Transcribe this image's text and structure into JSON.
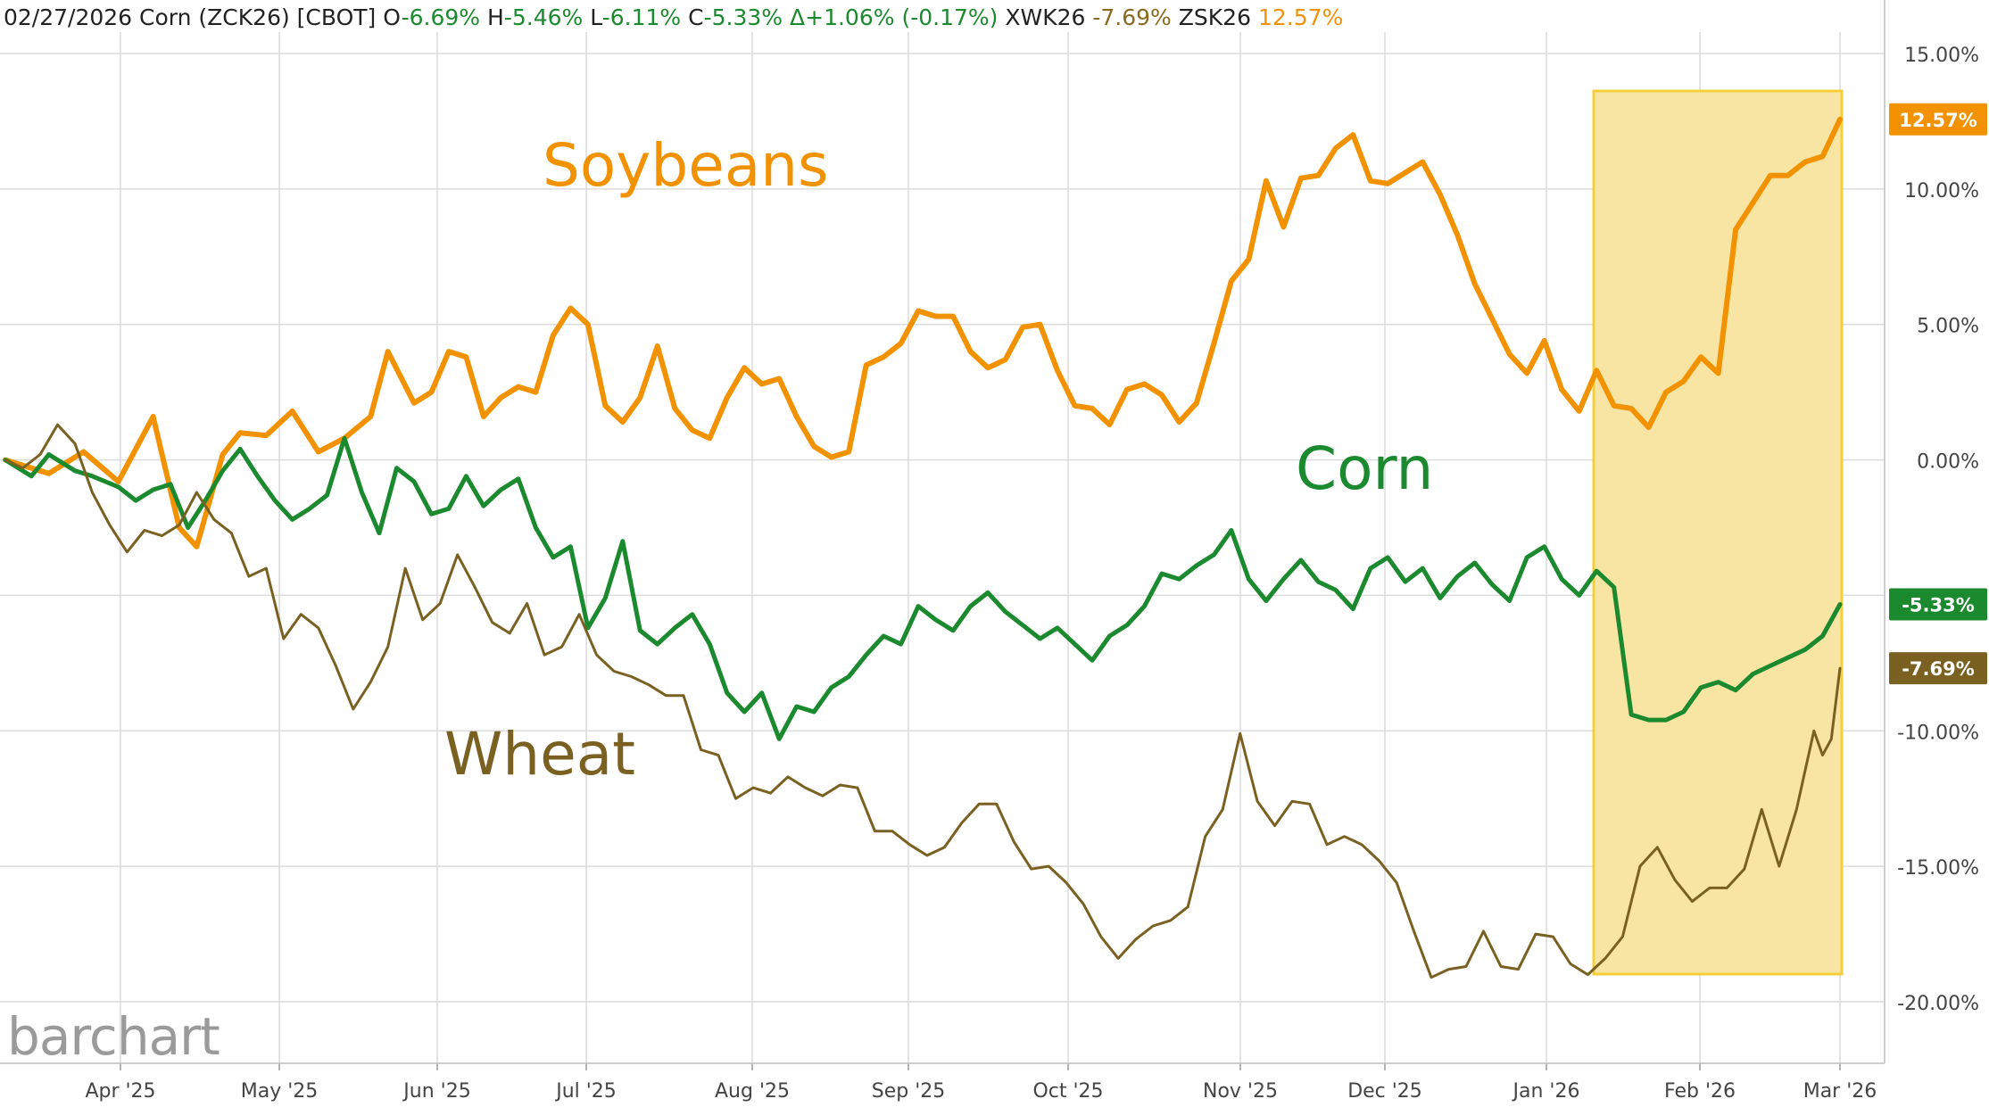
{
  "header": {
    "date": "02/27/2026",
    "symbol_text": "Corn (ZCK26) [CBOT]",
    "open_label": "O",
    "open": "-6.69%",
    "high_label": "H",
    "high": "-5.46%",
    "low_label": "L",
    "low": "-6.11%",
    "close_label": "C",
    "close": "-5.33%",
    "change": "Δ+1.06% (-0.17%)",
    "wheat_symbol": "XWK26",
    "wheat_value": "-7.69%",
    "soy_symbol": "ZSK26",
    "soy_value": "12.57%"
  },
  "logo_text": "barchart",
  "colors": {
    "corn": "#1b8a2e",
    "wheat": "#7a6121",
    "soybeans": "#f39200",
    "highlight_fill": "#f9e5a3",
    "highlight_stroke": "#f5cf37",
    "grid": "#dcdcdc",
    "axis_text": "#444444"
  },
  "chart_data": {
    "type": "line",
    "x_axis_labels": [
      "Apr '25",
      "May '25",
      "Jun '25",
      "Jul '25",
      "Aug '25",
      "Sep '25",
      "Oct '25",
      "Nov '25",
      "Dec '25",
      "Jan '26",
      "Feb '26",
      "Mar '26"
    ],
    "y_ticks": [
      "15.00%",
      "10.00%",
      "5.00%",
      "0.00%",
      "-5.00%",
      "-10.00%",
      "-15.00%",
      "-20.00%"
    ],
    "ylim": [
      -20,
      15
    ],
    "annotations": {
      "soybeans": "Soybeans",
      "corn": "Corn",
      "wheat": "Wheat"
    },
    "highlight_range": [
      "Jan '26",
      "Mar '26"
    ],
    "series": [
      {
        "name": "Soybeans",
        "key": "soybeans",
        "last_label": "12.57%",
        "points": [
          [
            0,
            0.0
          ],
          [
            5,
            -0.5
          ],
          [
            9,
            0.3
          ],
          [
            13,
            -0.8
          ],
          [
            17,
            1.6
          ],
          [
            20,
            -2.5
          ],
          [
            22,
            -3.2
          ],
          [
            25,
            0.2
          ],
          [
            27,
            1.0
          ],
          [
            30,
            0.9
          ],
          [
            33,
            1.8
          ],
          [
            36,
            0.3
          ],
          [
            39,
            0.8
          ],
          [
            42,
            1.6
          ],
          [
            44,
            4.0
          ],
          [
            47,
            2.1
          ],
          [
            49,
            2.5
          ],
          [
            51,
            4.0
          ],
          [
            53,
            3.8
          ],
          [
            55,
            1.6
          ],
          [
            57,
            2.3
          ],
          [
            59,
            2.7
          ],
          [
            61,
            2.5
          ],
          [
            63,
            4.6
          ],
          [
            65,
            5.6
          ],
          [
            67,
            5.0
          ],
          [
            69,
            2.0
          ],
          [
            71,
            1.4
          ],
          [
            73,
            2.3
          ],
          [
            75,
            4.2
          ],
          [
            77,
            1.9
          ],
          [
            79,
            1.1
          ],
          [
            81,
            0.8
          ],
          [
            83,
            2.3
          ],
          [
            85,
            3.4
          ],
          [
            87,
            2.8
          ],
          [
            89,
            3.0
          ],
          [
            91,
            1.6
          ],
          [
            93,
            0.5
          ],
          [
            95,
            0.1
          ],
          [
            97,
            0.3
          ],
          [
            99,
            3.5
          ],
          [
            101,
            3.8
          ],
          [
            103,
            4.3
          ],
          [
            105,
            5.5
          ],
          [
            107,
            5.3
          ],
          [
            109,
            5.3
          ],
          [
            111,
            4.0
          ],
          [
            113,
            3.4
          ],
          [
            115,
            3.7
          ],
          [
            117,
            4.9
          ],
          [
            119,
            5.0
          ],
          [
            121,
            3.3
          ],
          [
            123,
            2.0
          ],
          [
            125,
            1.9
          ],
          [
            127,
            1.3
          ],
          [
            129,
            2.6
          ],
          [
            131,
            2.8
          ],
          [
            133,
            2.4
          ],
          [
            135,
            1.4
          ],
          [
            137,
            2.1
          ],
          [
            139,
            4.3
          ],
          [
            141,
            6.6
          ],
          [
            143,
            7.4
          ],
          [
            145,
            10.3
          ],
          [
            147,
            8.6
          ],
          [
            149,
            10.4
          ],
          [
            151,
            10.5
          ],
          [
            153,
            11.5
          ],
          [
            155,
            12.0
          ],
          [
            157,
            10.3
          ],
          [
            159,
            10.2
          ],
          [
            161,
            10.6
          ],
          [
            163,
            11.0
          ],
          [
            165,
            9.8
          ],
          [
            167,
            8.3
          ],
          [
            169,
            6.5
          ],
          [
            171,
            5.2
          ],
          [
            173,
            3.9
          ],
          [
            175,
            3.2
          ],
          [
            177,
            4.4
          ],
          [
            179,
            2.6
          ],
          [
            181,
            1.8
          ],
          [
            183,
            3.3
          ],
          [
            185,
            2.0
          ],
          [
            187,
            1.9
          ],
          [
            189,
            1.2
          ],
          [
            191,
            2.5
          ],
          [
            193,
            2.9
          ],
          [
            195,
            3.8
          ],
          [
            197,
            3.2
          ],
          [
            199,
            8.5
          ],
          [
            201,
            9.5
          ],
          [
            203,
            10.5
          ],
          [
            205,
            10.5
          ],
          [
            207,
            11.0
          ],
          [
            209,
            11.2
          ],
          [
            211,
            12.57
          ]
        ]
      },
      {
        "name": "Corn",
        "key": "corn",
        "last_label": "-5.33%",
        "points": [
          [
            0,
            0.0
          ],
          [
            3,
            -0.6
          ],
          [
            5,
            0.2
          ],
          [
            8,
            -0.4
          ],
          [
            10,
            -0.6
          ],
          [
            13,
            -1.0
          ],
          [
            15,
            -1.5
          ],
          [
            17,
            -1.1
          ],
          [
            19,
            -0.9
          ],
          [
            21,
            -2.5
          ],
          [
            23,
            -1.5
          ],
          [
            25,
            -0.4
          ],
          [
            27,
            0.4
          ],
          [
            29,
            -0.6
          ],
          [
            31,
            -1.5
          ],
          [
            33,
            -2.2
          ],
          [
            35,
            -1.8
          ],
          [
            37,
            -1.3
          ],
          [
            39,
            0.8
          ],
          [
            41,
            -1.2
          ],
          [
            43,
            -2.7
          ],
          [
            45,
            -0.3
          ],
          [
            47,
            -0.8
          ],
          [
            49,
            -2.0
          ],
          [
            51,
            -1.8
          ],
          [
            53,
            -0.6
          ],
          [
            55,
            -1.7
          ],
          [
            57,
            -1.1
          ],
          [
            59,
            -0.7
          ],
          [
            61,
            -2.5
          ],
          [
            63,
            -3.6
          ],
          [
            65,
            -3.2
          ],
          [
            67,
            -6.2
          ],
          [
            69,
            -5.1
          ],
          [
            71,
            -3.0
          ],
          [
            73,
            -6.3
          ],
          [
            75,
            -6.8
          ],
          [
            77,
            -6.2
          ],
          [
            79,
            -5.7
          ],
          [
            81,
            -6.8
          ],
          [
            83,
            -8.6
          ],
          [
            85,
            -9.3
          ],
          [
            87,
            -8.6
          ],
          [
            89,
            -10.3
          ],
          [
            91,
            -9.1
          ],
          [
            93,
            -9.3
          ],
          [
            95,
            -8.4
          ],
          [
            97,
            -8.0
          ],
          [
            99,
            -7.2
          ],
          [
            101,
            -6.5
          ],
          [
            103,
            -6.8
          ],
          [
            105,
            -5.4
          ],
          [
            107,
            -5.9
          ],
          [
            109,
            -6.3
          ],
          [
            111,
            -5.4
          ],
          [
            113,
            -4.9
          ],
          [
            115,
            -5.6
          ],
          [
            117,
            -6.1
          ],
          [
            119,
            -6.6
          ],
          [
            121,
            -6.2
          ],
          [
            123,
            -6.8
          ],
          [
            125,
            -7.4
          ],
          [
            127,
            -6.5
          ],
          [
            129,
            -6.1
          ],
          [
            131,
            -5.4
          ],
          [
            133,
            -4.2
          ],
          [
            135,
            -4.4
          ],
          [
            137,
            -3.9
          ],
          [
            139,
            -3.5
          ],
          [
            141,
            -2.6
          ],
          [
            143,
            -4.4
          ],
          [
            145,
            -5.2
          ],
          [
            147,
            -4.4
          ],
          [
            149,
            -3.7
          ],
          [
            151,
            -4.5
          ],
          [
            153,
            -4.8
          ],
          [
            155,
            -5.5
          ],
          [
            157,
            -4.0
          ],
          [
            159,
            -3.6
          ],
          [
            161,
            -4.5
          ],
          [
            163,
            -4.0
          ],
          [
            165,
            -5.1
          ],
          [
            167,
            -4.3
          ],
          [
            169,
            -3.8
          ],
          [
            171,
            -4.6
          ],
          [
            173,
            -5.2
          ],
          [
            175,
            -3.6
          ],
          [
            177,
            -3.2
          ],
          [
            179,
            -4.4
          ],
          [
            181,
            -5.0
          ],
          [
            183,
            -4.1
          ],
          [
            185,
            -4.7
          ],
          [
            187,
            -9.4
          ],
          [
            189,
            -9.6
          ],
          [
            191,
            -9.6
          ],
          [
            193,
            -9.3
          ],
          [
            195,
            -8.4
          ],
          [
            197,
            -8.2
          ],
          [
            199,
            -8.5
          ],
          [
            201,
            -7.9
          ],
          [
            203,
            -7.6
          ],
          [
            205,
            -7.3
          ],
          [
            207,
            -7.0
          ],
          [
            209,
            -6.5
          ],
          [
            211,
            -5.33
          ]
        ]
      },
      {
        "name": "Wheat",
        "key": "wheat",
        "last_label": "-7.69%",
        "points": [
          [
            0,
            0.0
          ],
          [
            2,
            -0.3
          ],
          [
            4,
            0.2
          ],
          [
            6,
            1.3
          ],
          [
            8,
            0.6
          ],
          [
            10,
            -1.2
          ],
          [
            12,
            -2.4
          ],
          [
            14,
            -3.4
          ],
          [
            16,
            -2.6
          ],
          [
            18,
            -2.8
          ],
          [
            20,
            -2.4
          ],
          [
            22,
            -1.2
          ],
          [
            24,
            -2.2
          ],
          [
            26,
            -2.7
          ],
          [
            28,
            -4.3
          ],
          [
            30,
            -4.0
          ],
          [
            32,
            -6.6
          ],
          [
            34,
            -5.7
          ],
          [
            36,
            -6.2
          ],
          [
            38,
            -7.6
          ],
          [
            40,
            -9.2
          ],
          [
            42,
            -8.2
          ],
          [
            44,
            -6.9
          ],
          [
            46,
            -4.0
          ],
          [
            48,
            -5.9
          ],
          [
            50,
            -5.3
          ],
          [
            52,
            -3.5
          ],
          [
            54,
            -4.7
          ],
          [
            56,
            -6.0
          ],
          [
            58,
            -6.4
          ],
          [
            60,
            -5.3
          ],
          [
            62,
            -7.2
          ],
          [
            64,
            -6.9
          ],
          [
            66,
            -5.7
          ],
          [
            68,
            -7.2
          ],
          [
            70,
            -7.8
          ],
          [
            72,
            -8.0
          ],
          [
            74,
            -8.3
          ],
          [
            76,
            -8.7
          ],
          [
            78,
            -8.7
          ],
          [
            80,
            -10.7
          ],
          [
            82,
            -10.9
          ],
          [
            84,
            -12.5
          ],
          [
            86,
            -12.1
          ],
          [
            88,
            -12.3
          ],
          [
            90,
            -11.7
          ],
          [
            92,
            -12.1
          ],
          [
            94,
            -12.4
          ],
          [
            96,
            -12.0
          ],
          [
            98,
            -12.1
          ],
          [
            100,
            -13.7
          ],
          [
            102,
            -13.7
          ],
          [
            104,
            -14.2
          ],
          [
            106,
            -14.6
          ],
          [
            108,
            -14.3
          ],
          [
            110,
            -13.4
          ],
          [
            112,
            -12.7
          ],
          [
            114,
            -12.7
          ],
          [
            116,
            -14.1
          ],
          [
            118,
            -15.1
          ],
          [
            120,
            -15.0
          ],
          [
            122,
            -15.6
          ],
          [
            124,
            -16.4
          ],
          [
            126,
            -17.6
          ],
          [
            128,
            -18.4
          ],
          [
            130,
            -17.7
          ],
          [
            132,
            -17.2
          ],
          [
            134,
            -17.0
          ],
          [
            136,
            -16.5
          ],
          [
            138,
            -13.9
          ],
          [
            140,
            -12.9
          ],
          [
            142,
            -10.1
          ],
          [
            144,
            -12.6
          ],
          [
            146,
            -13.5
          ],
          [
            148,
            -12.6
          ],
          [
            150,
            -12.7
          ],
          [
            152,
            -14.2
          ],
          [
            154,
            -13.9
          ],
          [
            156,
            -14.2
          ],
          [
            158,
            -14.8
          ],
          [
            160,
            -15.6
          ],
          [
            162,
            -17.4
          ],
          [
            164,
            -19.1
          ],
          [
            166,
            -18.8
          ],
          [
            168,
            -18.7
          ],
          [
            170,
            -17.4
          ],
          [
            172,
            -18.7
          ],
          [
            174,
            -18.8
          ],
          [
            176,
            -17.5
          ],
          [
            178,
            -17.6
          ],
          [
            180,
            -18.6
          ],
          [
            182,
            -19.0
          ],
          [
            184,
            -18.4
          ],
          [
            186,
            -17.6
          ],
          [
            188,
            -15.0
          ],
          [
            190,
            -14.3
          ],
          [
            192,
            -15.5
          ],
          [
            194,
            -16.3
          ],
          [
            196,
            -15.8
          ],
          [
            198,
            -15.8
          ],
          [
            200,
            -15.1
          ],
          [
            202,
            -12.9
          ],
          [
            204,
            -15.0
          ],
          [
            206,
            -12.9
          ],
          [
            208,
            -10.0
          ],
          [
            209,
            -10.9
          ],
          [
            210,
            -10.3
          ],
          [
            211,
            -7.69
          ]
        ]
      }
    ]
  }
}
